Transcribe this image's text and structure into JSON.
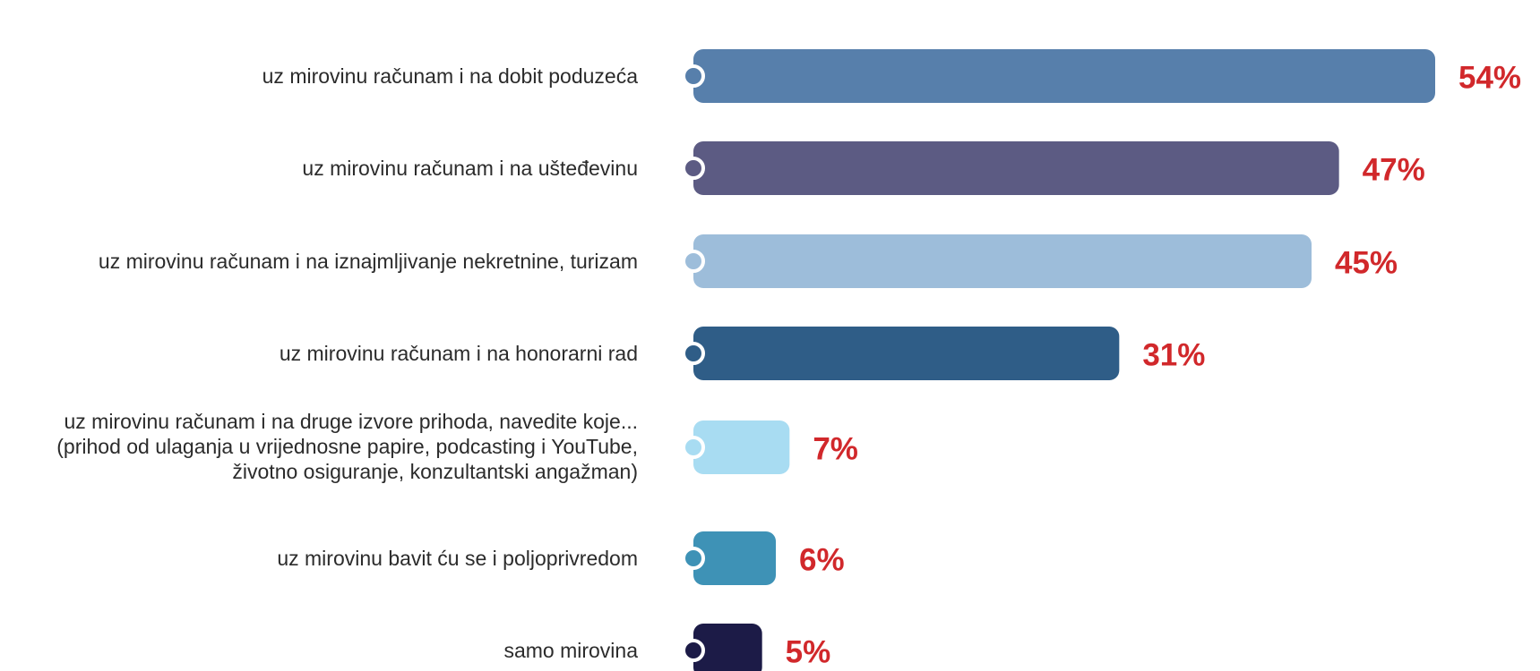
{
  "chart_data": {
    "type": "bar",
    "orientation": "horizontal",
    "title": "",
    "xlabel": "",
    "ylabel": "",
    "xlim": [
      0,
      54
    ],
    "grid": false,
    "legend": "none",
    "unit": "%",
    "categories": [
      [
        "uz mirovinu računam i na dobit poduzeća"
      ],
      [
        "uz mirovinu računam i na ušteđevinu"
      ],
      [
        "uz mirovinu računam i na iznajmljivanje nekretnine, turizam"
      ],
      [
        "uz mirovinu računam i na honorarni rad"
      ],
      [
        "uz mirovinu računam i na druge izvore prihoda, navedite koje...",
        "(prihod od ulaganja u vrijednosne papire, podcasting i YouTube,",
        "životno osiguranje, konzultantski angažman)"
      ],
      [
        "uz mirovinu bavit ću se i poljoprivredom"
      ],
      [
        "samo mirovina"
      ]
    ],
    "values": [
      54,
      47,
      45,
      31,
      7,
      6,
      5
    ],
    "value_labels": [
      "54%",
      "47%",
      "45%",
      "31%",
      "7%",
      "6%",
      "5%"
    ],
    "colors": [
      "#577fab",
      "#5c5b83",
      "#9dbdda",
      "#2f5d87",
      "#a8dcf2",
      "#3e92b6",
      "#1c1b47"
    ],
    "value_label_color": "#d1282b"
  }
}
